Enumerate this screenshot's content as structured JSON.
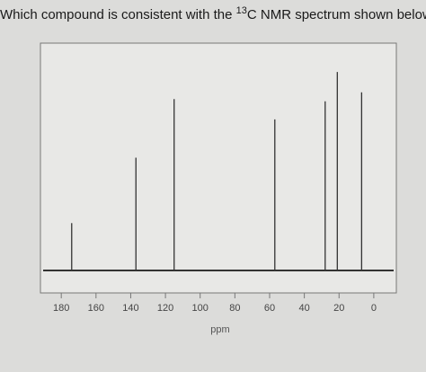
{
  "chart_data": {
    "type": "stem",
    "title": [
      "Which compound is consistent with the ",
      "13",
      "C NMR spectrum shown below?"
    ],
    "xlabel": "ppm",
    "x": [
      174,
      137,
      115,
      57,
      28,
      21,
      7
    ],
    "values": [
      21,
      50,
      76,
      67,
      75,
      88,
      79
    ],
    "color": "#333333",
    "xlim": [
      192,
      -13
    ],
    "xticks": [
      180,
      160,
      140,
      120,
      100,
      80,
      60,
      40,
      20,
      0
    ],
    "ylim": [
      0,
      100
    ]
  }
}
